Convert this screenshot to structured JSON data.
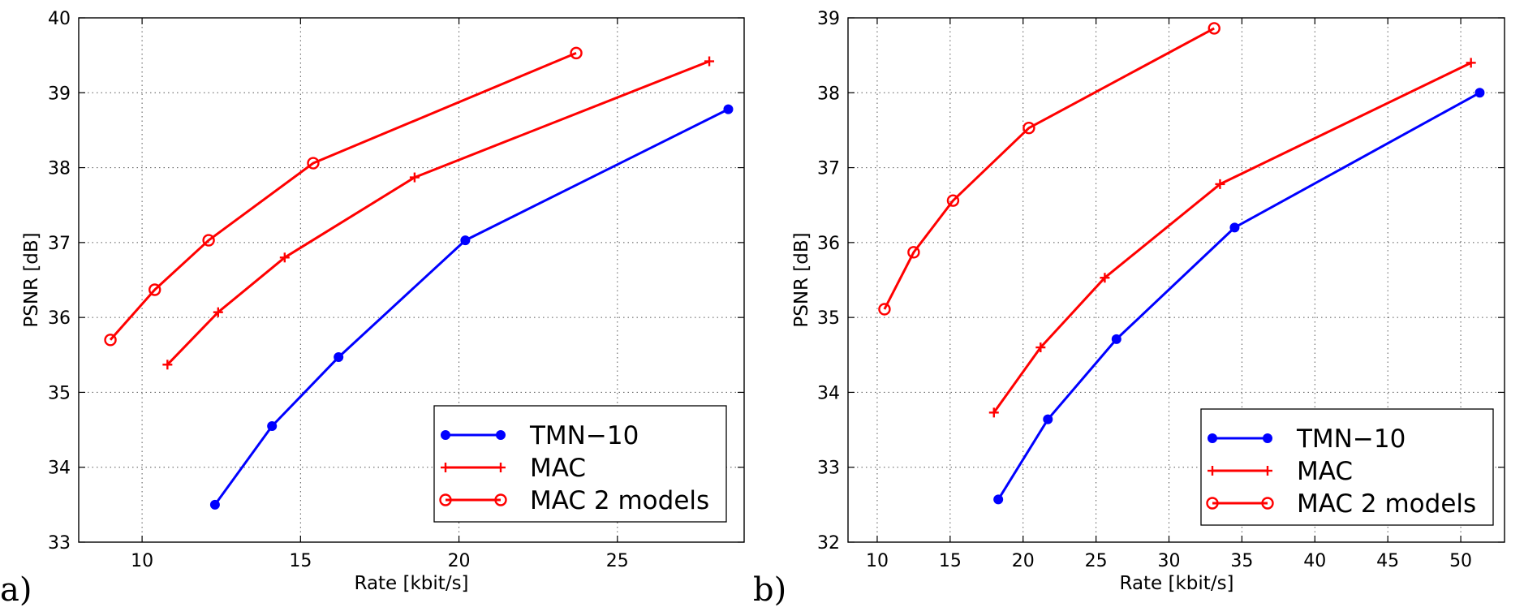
{
  "chart_data": [
    {
      "panel": "a",
      "type": "line",
      "title": "",
      "panel_label": "a)",
      "xlabel": "Rate [kbit/s]",
      "ylabel": "PSNR [dB]",
      "xlim": [
        8,
        29
      ],
      "ylim": [
        33,
        40
      ],
      "xticks": [
        10,
        15,
        20,
        25
      ],
      "yticks": [
        33,
        34,
        35,
        36,
        37,
        38,
        39,
        40
      ],
      "grid": true,
      "legend_position": "bottom-right",
      "series": [
        {
          "name": "TMN−10",
          "color": "#0000ff",
          "marker": "dot",
          "x": [
            12.3,
            14.1,
            16.2,
            20.2,
            28.5
          ],
          "y": [
            33.5,
            34.55,
            35.47,
            37.03,
            38.78
          ]
        },
        {
          "name": "MAC",
          "color": "#ff0000",
          "marker": "plus",
          "x": [
            10.8,
            12.4,
            14.5,
            18.6,
            27.9
          ],
          "y": [
            35.37,
            36.07,
            36.8,
            37.87,
            39.42
          ]
        },
        {
          "name": "MAC 2 models",
          "color": "#ff0000",
          "marker": "circle",
          "x": [
            9.0,
            10.4,
            12.1,
            15.4,
            23.7
          ],
          "y": [
            35.7,
            36.37,
            37.03,
            38.06,
            39.53
          ]
        }
      ]
    },
    {
      "panel": "b",
      "type": "line",
      "title": "",
      "panel_label": "b)",
      "xlabel": "Rate [kbit/s]",
      "ylabel": "PSNR [dB]",
      "xlim": [
        8,
        53
      ],
      "ylim": [
        32,
        39
      ],
      "xticks": [
        10,
        15,
        20,
        25,
        30,
        35,
        40,
        45,
        50
      ],
      "yticks": [
        32,
        33,
        34,
        35,
        36,
        37,
        38,
        39
      ],
      "grid": true,
      "legend_position": "bottom-right",
      "series": [
        {
          "name": "TMN−10",
          "color": "#0000ff",
          "marker": "dot",
          "x": [
            18.3,
            21.7,
            26.4,
            34.5,
            51.3
          ],
          "y": [
            32.57,
            33.64,
            34.71,
            36.2,
            38.0
          ]
        },
        {
          "name": "MAC",
          "color": "#ff0000",
          "marker": "plus",
          "x": [
            18.0,
            21.2,
            25.6,
            33.5,
            50.7
          ],
          "y": [
            33.73,
            34.6,
            35.53,
            36.78,
            38.4
          ]
        },
        {
          "name": "MAC 2 models",
          "color": "#ff0000",
          "marker": "circle",
          "x": [
            10.5,
            12.5,
            15.2,
            20.4,
            33.1
          ],
          "y": [
            35.11,
            35.87,
            36.56,
            37.53,
            38.86
          ]
        }
      ]
    }
  ]
}
